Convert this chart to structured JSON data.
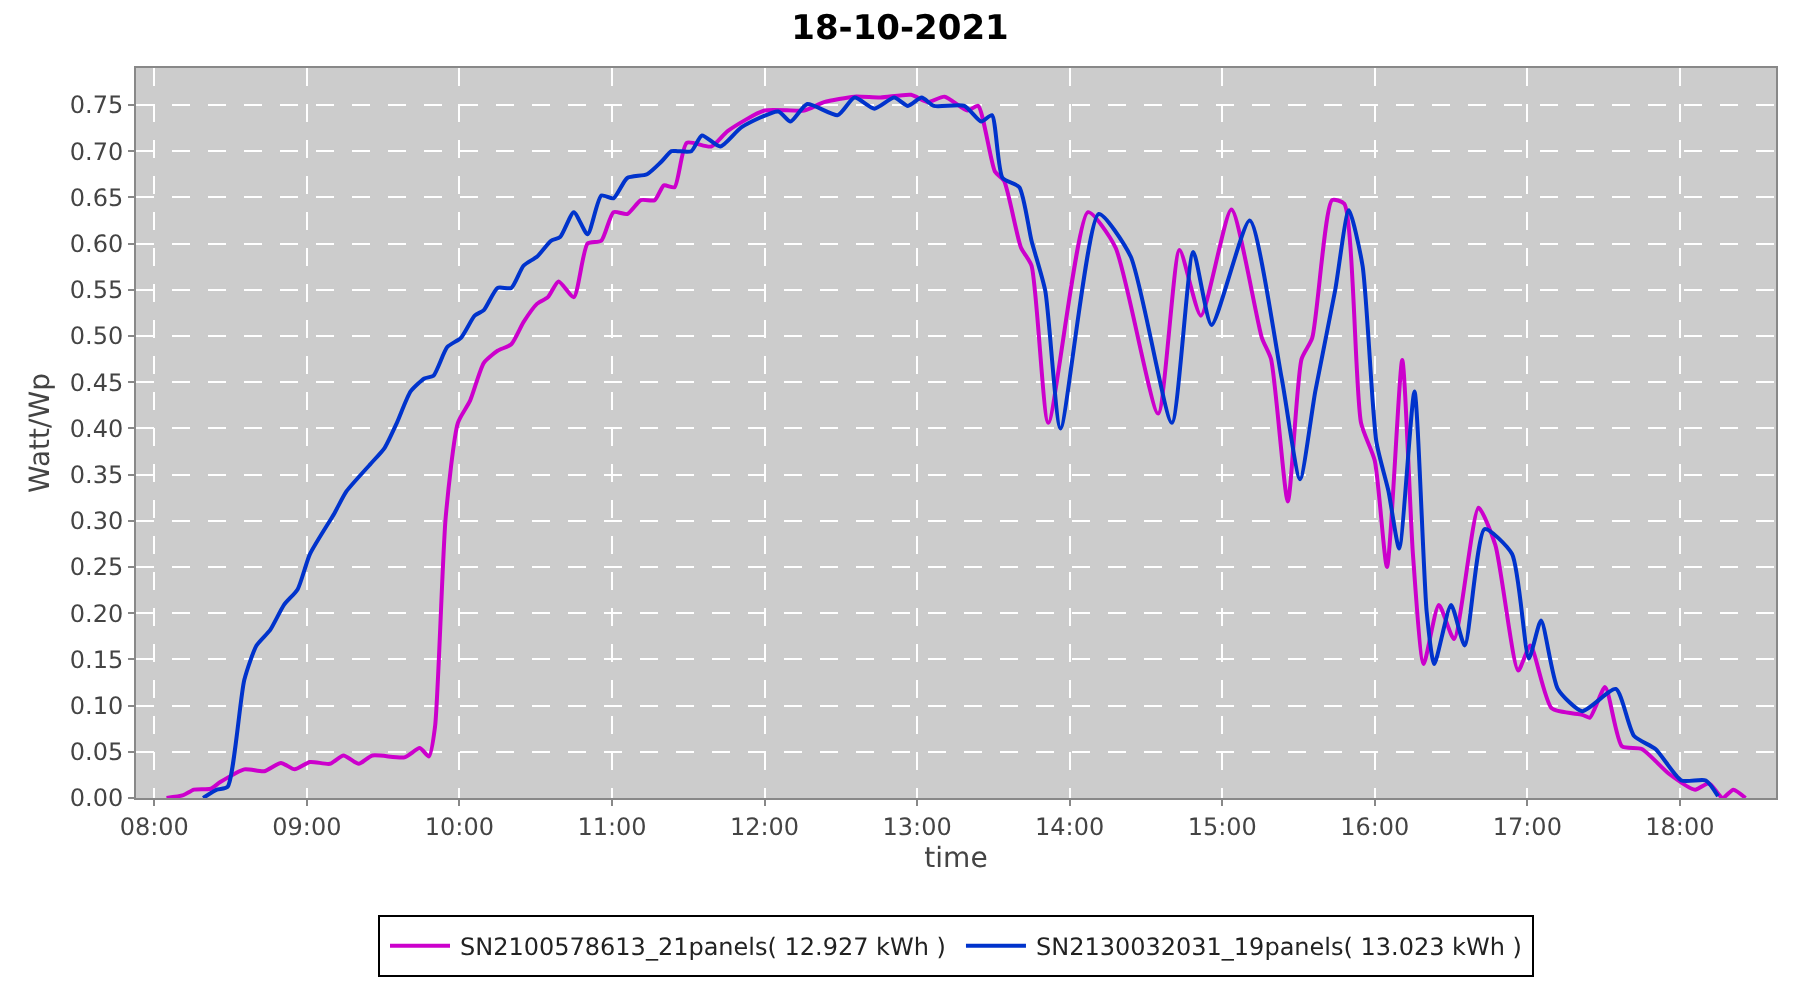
{
  "chart_data": {
    "type": "line",
    "title": "18-10-2021",
    "xlabel": "time",
    "ylabel": "Watt/Wp",
    "xlim": [
      7.88,
      18.63
    ],
    "xticks": [
      {
        "value": 8,
        "label": "08:00"
      },
      {
        "value": 9,
        "label": "09:00"
      },
      {
        "value": 10,
        "label": "10:00"
      },
      {
        "value": 11,
        "label": "11:00"
      },
      {
        "value": 12,
        "label": "12:00"
      },
      {
        "value": 13,
        "label": "13:00"
      },
      {
        "value": 14,
        "label": "14:00"
      },
      {
        "value": 15,
        "label": "15:00"
      },
      {
        "value": 16,
        "label": "16:00"
      },
      {
        "value": 17,
        "label": "17:00"
      },
      {
        "value": 18,
        "label": "18:00"
      }
    ],
    "ylim": [
      0,
      0.79
    ],
    "yticks": [
      {
        "value": 0,
        "label": "0.00"
      },
      {
        "value": 0.05,
        "label": "0.05"
      },
      {
        "value": 0.1,
        "label": "0.10"
      },
      {
        "value": 0.15,
        "label": "0.15"
      },
      {
        "value": 0.2,
        "label": "0.20"
      },
      {
        "value": 0.25,
        "label": "0.25"
      },
      {
        "value": 0.3,
        "label": "0.30"
      },
      {
        "value": 0.35,
        "label": "0.35"
      },
      {
        "value": 0.4,
        "label": "0.40"
      },
      {
        "value": 0.45,
        "label": "0.45"
      },
      {
        "value": 0.5,
        "label": "0.50"
      },
      {
        "value": 0.55,
        "label": "0.55"
      },
      {
        "value": 0.6,
        "label": "0.60"
      },
      {
        "value": 0.65,
        "label": "0.65"
      },
      {
        "value": 0.7,
        "label": "0.70"
      },
      {
        "value": 0.75,
        "label": "0.75"
      }
    ],
    "grid": true,
    "line_style": "solid",
    "legend": "bottom",
    "series": [
      {
        "name": "SN2100578613_21panels( 12.927 kWh )",
        "color": "#cc00cc",
        "x": [
          8.08,
          8.19,
          8.26,
          8.37,
          8.43,
          8.59,
          8.72,
          8.83,
          8.92,
          9.02,
          9.15,
          9.24,
          9.34,
          9.43,
          9.64,
          9.74,
          9.8,
          9.84,
          9.91,
          9.99,
          10.07,
          10.16,
          10.25,
          10.34,
          10.42,
          10.51,
          10.58,
          10.65,
          10.75,
          10.84,
          10.93,
          11.01,
          11.1,
          11.19,
          11.28,
          11.34,
          11.41,
          11.49,
          11.65,
          11.76,
          12.0,
          12.26,
          12.39,
          12.59,
          12.76,
          12.96,
          13.07,
          13.18,
          13.33,
          13.4,
          13.51,
          13.57,
          13.68,
          13.75,
          13.86,
          14.12,
          14.3,
          14.58,
          14.72,
          14.86,
          15.06,
          15.26,
          15.32,
          15.43,
          15.52,
          15.59,
          15.72,
          15.8,
          15.91,
          16.0,
          16.08,
          16.18,
          16.25,
          16.32,
          16.42,
          16.52,
          16.68,
          16.79,
          16.94,
          17.02,
          17.16,
          17.36,
          17.41,
          17.51,
          17.62,
          17.75,
          17.93,
          18.1,
          18.19,
          18.28,
          18.35,
          18.43
        ],
        "values": [
          0,
          0.003,
          0.009,
          0.01,
          0.017,
          0.031,
          0.029,
          0.038,
          0.031,
          0.039,
          0.037,
          0.046,
          0.037,
          0.046,
          0.044,
          0.054,
          0.045,
          0.077,
          0.304,
          0.406,
          0.43,
          0.471,
          0.484,
          0.491,
          0.515,
          0.535,
          0.542,
          0.559,
          0.542,
          0.6,
          0.603,
          0.634,
          0.632,
          0.647,
          0.647,
          0.663,
          0.661,
          0.709,
          0.705,
          0.722,
          0.744,
          0.744,
          0.753,
          0.759,
          0.758,
          0.761,
          0.753,
          0.759,
          0.744,
          0.749,
          0.678,
          0.668,
          0.596,
          0.576,
          0.406,
          0.634,
          0.596,
          0.416,
          0.593,
          0.522,
          0.637,
          0.498,
          0.475,
          0.321,
          0.475,
          0.498,
          0.647,
          0.643,
          0.406,
          0.365,
          0.25,
          0.474,
          0.264,
          0.145,
          0.209,
          0.172,
          0.314,
          0.274,
          0.138,
          0.165,
          0.097,
          0.09,
          0.087,
          0.12,
          0.056,
          0.053,
          0.026,
          0.009,
          0.016,
          0,
          0.009,
          0
        ]
      },
      {
        "name": "SN2130032031_19panels( 13.023 kWh )",
        "color": "#0033cc",
        "x": [
          8.32,
          8.41,
          8.48,
          8.59,
          8.67,
          8.76,
          8.85,
          8.94,
          9.02,
          9.18,
          9.26,
          9.42,
          9.51,
          9.59,
          9.68,
          9.77,
          9.83,
          9.92,
          10.01,
          10.1,
          10.16,
          10.25,
          10.34,
          10.42,
          10.51,
          10.6,
          10.66,
          10.75,
          10.84,
          10.93,
          11.01,
          11.1,
          11.23,
          11.32,
          11.39,
          11.43,
          11.52,
          11.59,
          11.71,
          11.85,
          12.09,
          12.17,
          12.28,
          12.48,
          12.59,
          12.72,
          12.85,
          12.94,
          13.03,
          13.11,
          13.31,
          13.42,
          13.49,
          13.56,
          13.67,
          13.75,
          13.84,
          13.94,
          14.19,
          14.4,
          14.67,
          14.81,
          14.93,
          15.18,
          15.39,
          15.51,
          15.61,
          15.74,
          15.83,
          15.92,
          16.01,
          16.09,
          16.16,
          16.26,
          16.34,
          16.39,
          16.5,
          16.59,
          16.72,
          16.9,
          17.01,
          17.09,
          17.2,
          17.36,
          17.58,
          17.7,
          17.84,
          18.01,
          18.17,
          18.25
        ],
        "values": [
          0,
          0.009,
          0.012,
          0.128,
          0.165,
          0.182,
          0.209,
          0.226,
          0.264,
          0.308,
          0.332,
          0.362,
          0.379,
          0.406,
          0.44,
          0.454,
          0.457,
          0.488,
          0.498,
          0.522,
          0.528,
          0.552,
          0.552,
          0.576,
          0.586,
          0.603,
          0.607,
          0.634,
          0.61,
          0.652,
          0.649,
          0.671,
          0.675,
          0.688,
          0.7,
          0.7,
          0.7,
          0.717,
          0.705,
          0.726,
          0.743,
          0.732,
          0.751,
          0.739,
          0.758,
          0.746,
          0.758,
          0.749,
          0.758,
          0.749,
          0.749,
          0.732,
          0.739,
          0.671,
          0.661,
          0.603,
          0.549,
          0.4,
          0.632,
          0.586,
          0.406,
          0.591,
          0.512,
          0.625,
          0.454,
          0.345,
          0.44,
          0.549,
          0.636,
          0.576,
          0.386,
          0.332,
          0.27,
          0.44,
          0.202,
          0.145,
          0.209,
          0.165,
          0.291,
          0.264,
          0.151,
          0.192,
          0.118,
          0.094,
          0.118,
          0.067,
          0.053,
          0.019,
          0.019,
          0.002
        ]
      }
    ]
  }
}
